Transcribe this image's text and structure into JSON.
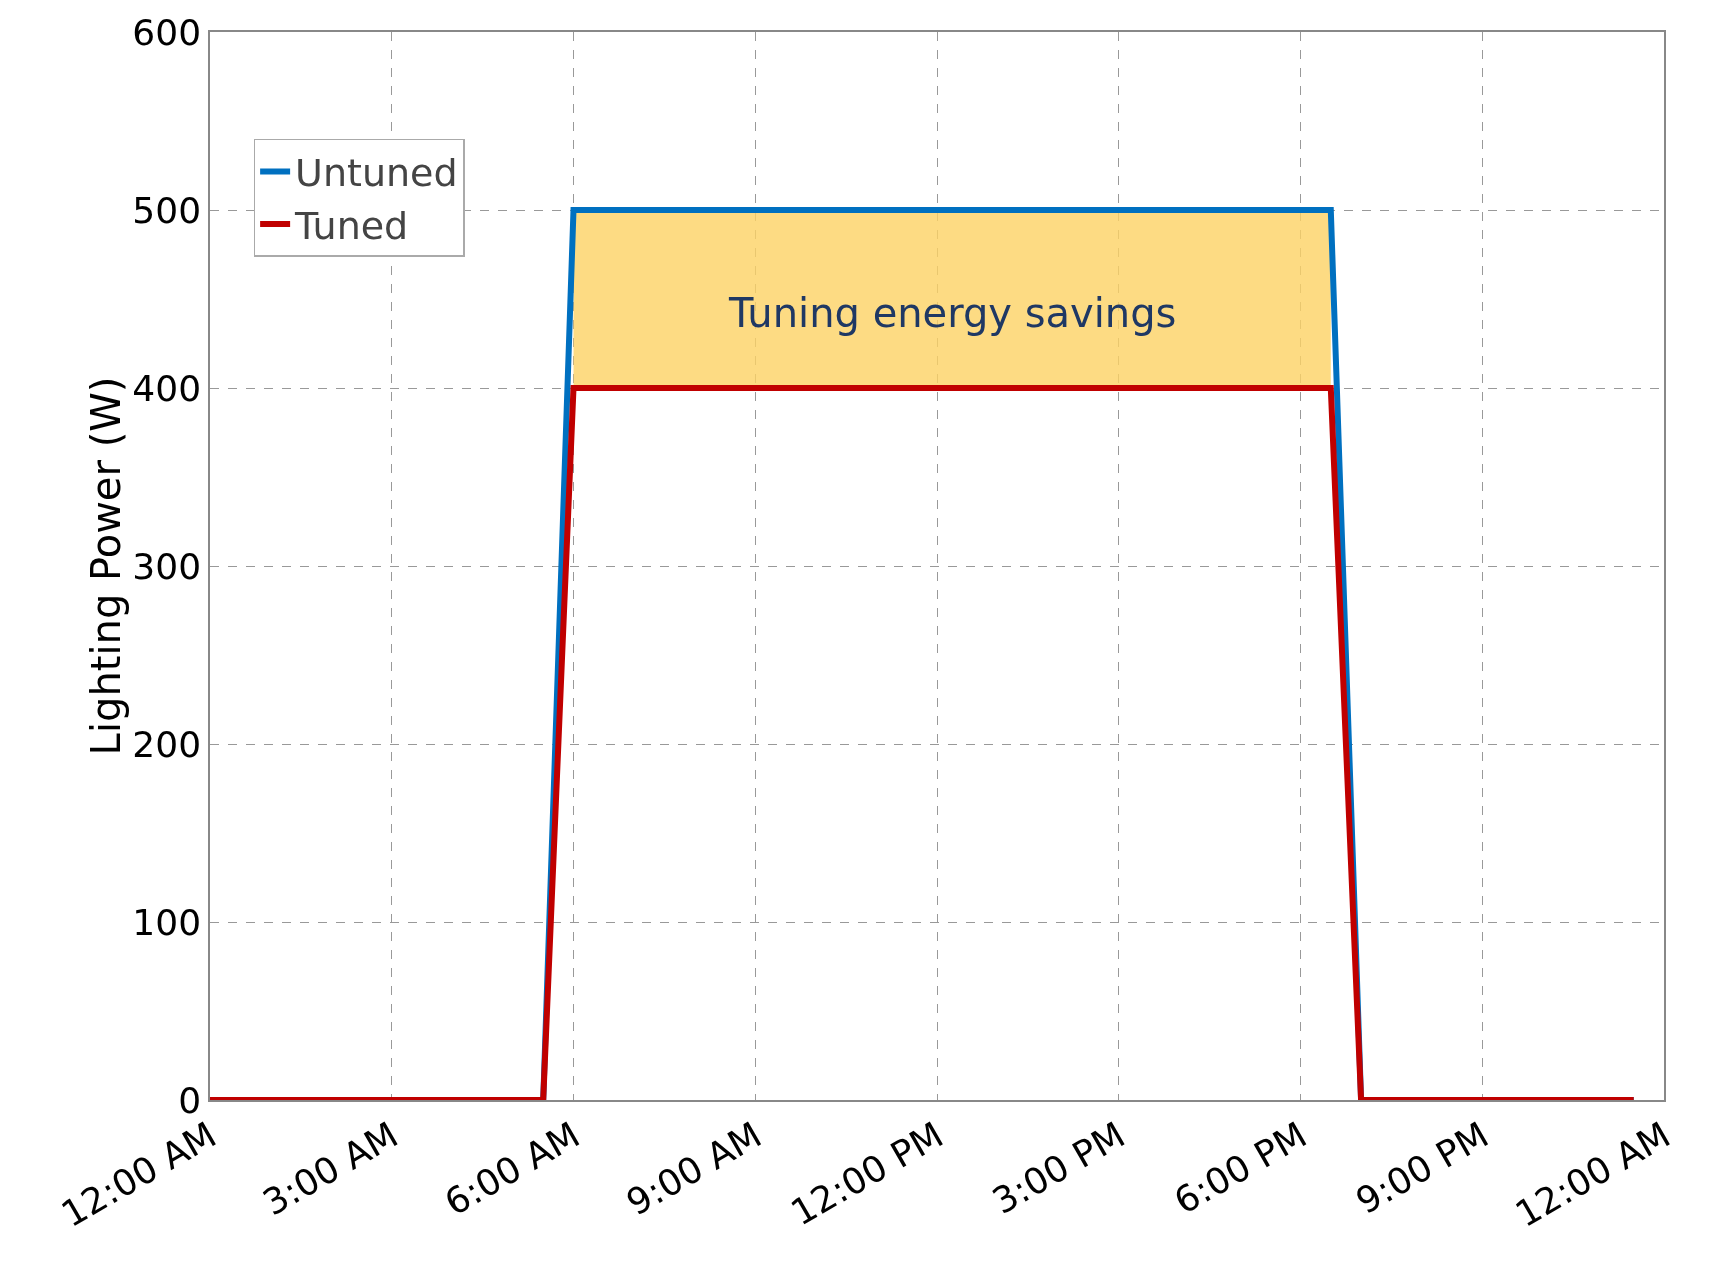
{
  "chart_data": {
    "type": "line",
    "ylabel": "Lighting Power (W)",
    "x": [
      0,
      5.5,
      6,
      18.5,
      19,
      23.5
    ],
    "series": [
      {
        "name": "Untuned",
        "color": "#0070c0",
        "values": [
          0,
          0,
          500,
          500,
          0,
          0
        ],
        "lower": [
          null,
          null,
          400,
          400,
          null,
          null
        ],
        "upper": [
          null,
          null,
          500,
          500,
          null,
          null
        ]
      },
      {
        "name": "Tuned",
        "color": "#c00000",
        "values": [
          0,
          0,
          400,
          400,
          0,
          0
        ]
      }
    ],
    "annotations": [
      "Tuning energy savings"
    ],
    "xlim": [
      0,
      24
    ],
    "xticks": [
      {
        "value": 0,
        "label": "12:00 AM"
      },
      {
        "value": 3,
        "label": "3:00 AM"
      },
      {
        "value": 6,
        "label": "6:00 AM"
      },
      {
        "value": 9,
        "label": "9:00 AM"
      },
      {
        "value": 12,
        "label": "12:00 PM"
      },
      {
        "value": 15,
        "label": "3:00 PM"
      },
      {
        "value": 18,
        "label": "6:00 PM"
      },
      {
        "value": 21,
        "label": "9:00 PM"
      },
      {
        "value": 24,
        "label": "12:00 AM"
      }
    ],
    "ylim": [
      0,
      600
    ],
    "yticks": [
      0,
      100,
      200,
      300,
      400,
      500,
      600
    ],
    "grid": true,
    "legend": "top left",
    "marker": "none",
    "line_style": "solid"
  }
}
